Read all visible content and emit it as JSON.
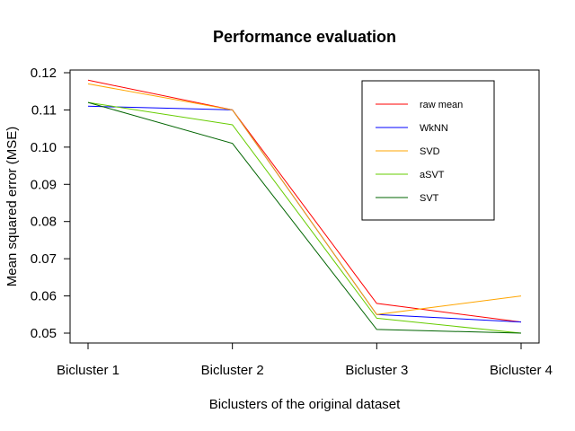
{
  "chart_data": {
    "type": "line",
    "title": "Performance evaluation",
    "xlabel": "Biclusters of the original dataset",
    "ylabel": "Mean squared error (MSE)",
    "categories": [
      "Bicluster 1",
      "Bicluster 2",
      "Bicluster 3",
      "Bicluster 4"
    ],
    "ylim": [
      0.05,
      0.12
    ],
    "yticks": [
      "0.05",
      "0.06",
      "0.07",
      "0.08",
      "0.09",
      "0.10",
      "0.11",
      "0.12"
    ],
    "grid": false,
    "legend_position": "top-right",
    "series": [
      {
        "name": "raw mean",
        "color": "#ff0000",
        "values": [
          0.118,
          0.11,
          0.058,
          0.053
        ]
      },
      {
        "name": "WkNN",
        "color": "#0000ff",
        "values": [
          0.111,
          0.11,
          0.055,
          0.053
        ]
      },
      {
        "name": "SVD",
        "color": "#ffa500",
        "values": [
          0.117,
          0.11,
          0.055,
          0.06
        ]
      },
      {
        "name": "aSVT",
        "color": "#66cc00",
        "values": [
          0.112,
          0.106,
          0.054,
          0.05
        ]
      },
      {
        "name": "SVT",
        "color": "#006400",
        "values": [
          0.112,
          0.101,
          0.051,
          0.05
        ]
      }
    ]
  }
}
